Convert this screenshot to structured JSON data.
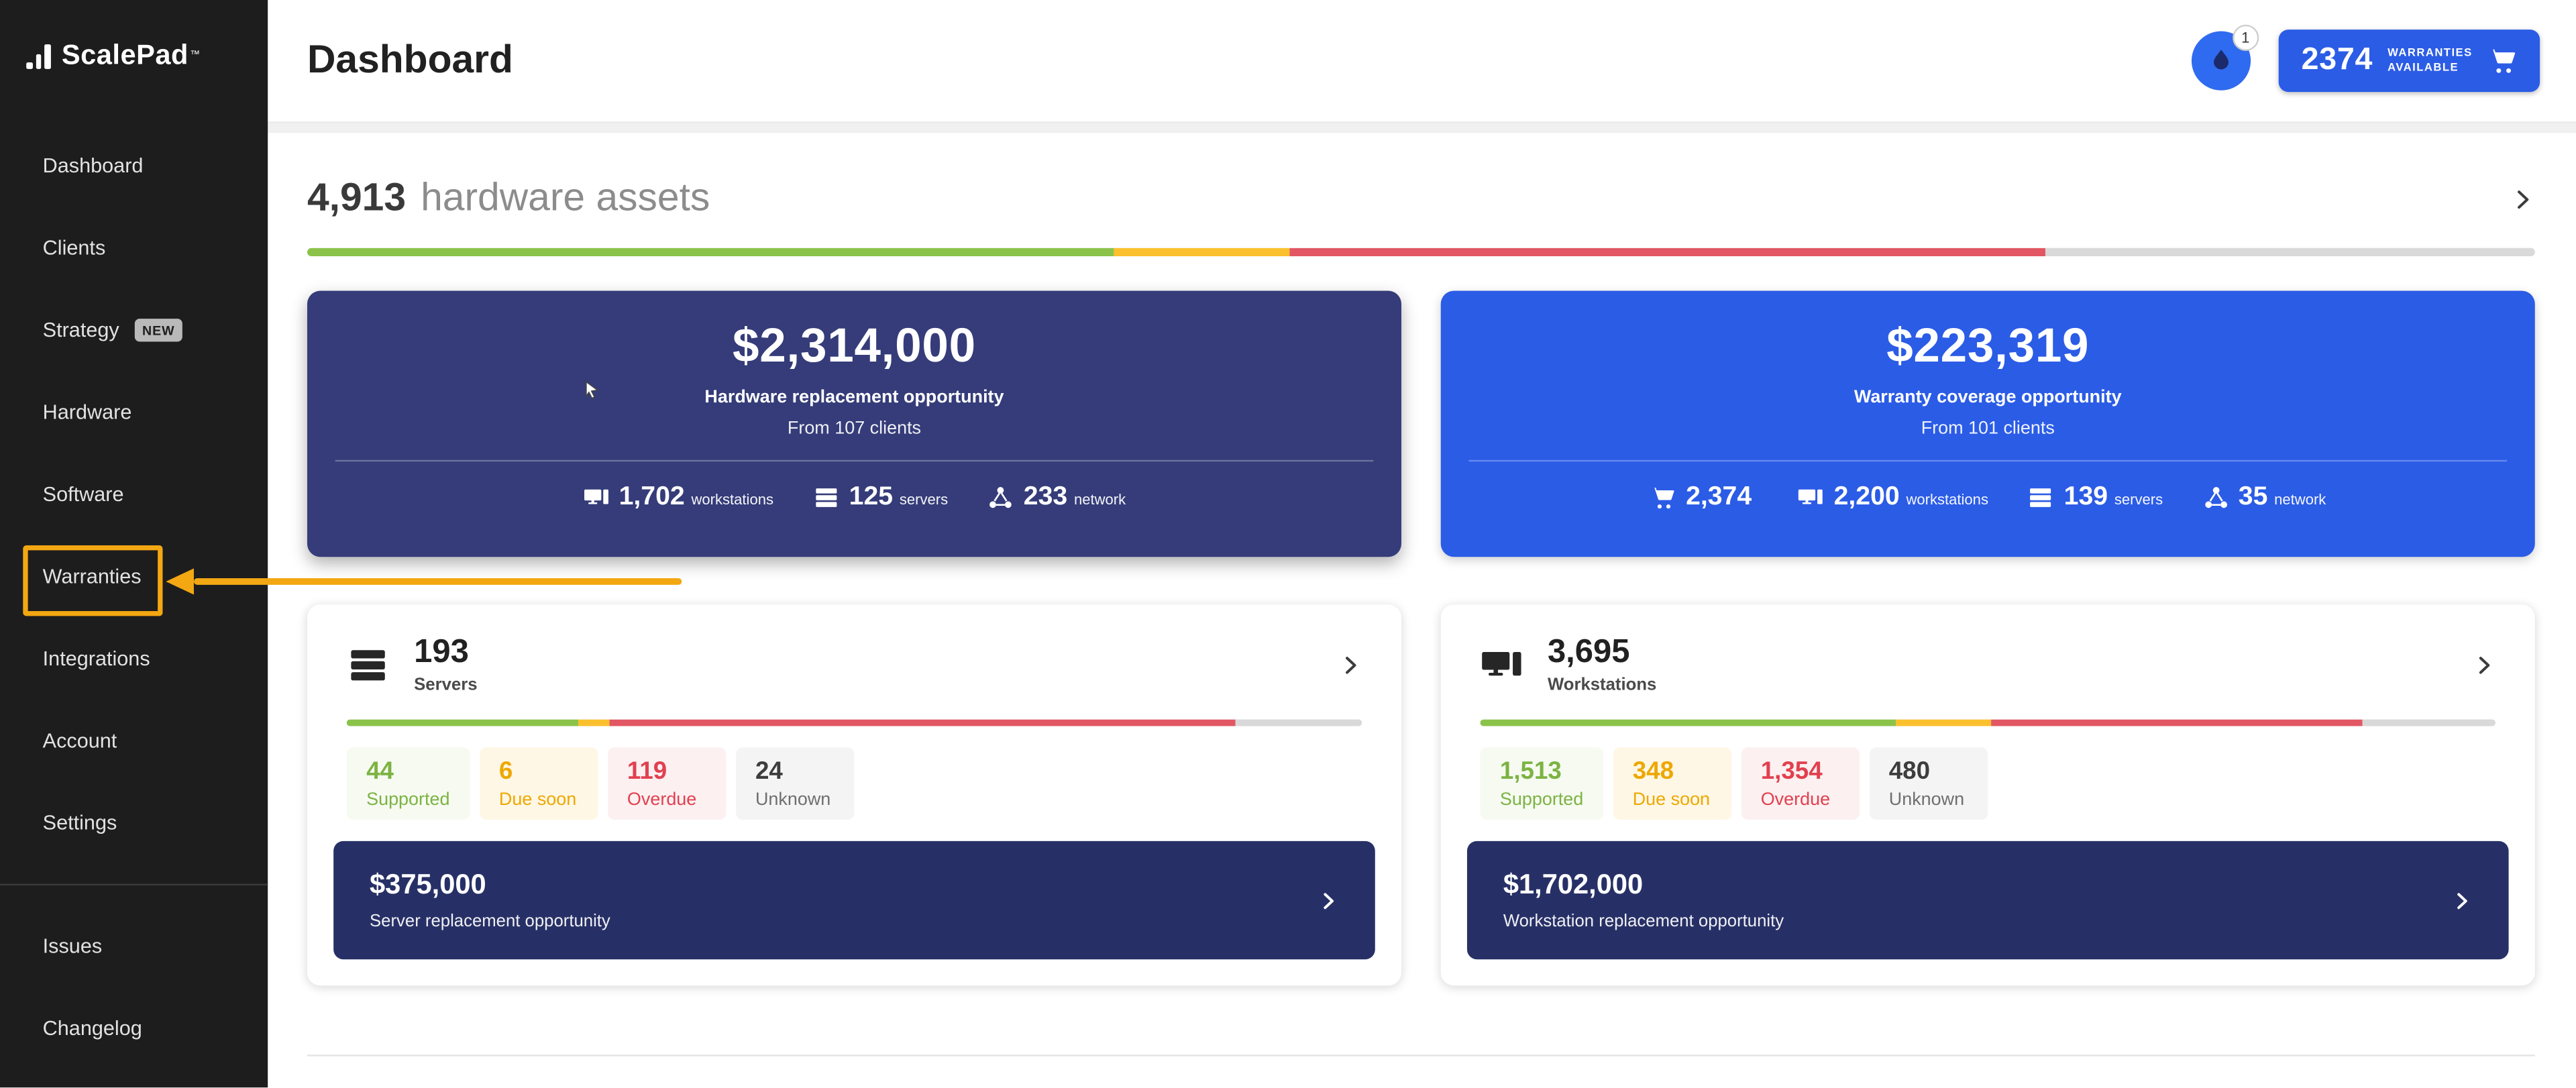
{
  "colors": {
    "accent_blue": "#2b5ce6",
    "navy_card": "#353c79",
    "navy_banner": "#273066",
    "status_green": "#8bc34a",
    "status_amber": "#fbc02d",
    "status_red": "#e25763",
    "track_gray": "#d9d9d9",
    "annotation_orange": "#f3a712"
  },
  "sidebar": {
    "logo": "ScalePad",
    "logo_tm": "™",
    "items": [
      {
        "label": "Dashboard"
      },
      {
        "label": "Clients"
      },
      {
        "label": "Strategy",
        "badge": "NEW"
      },
      {
        "label": "Hardware"
      },
      {
        "label": "Software"
      },
      {
        "label": "Warranties"
      },
      {
        "label": "Integrations"
      },
      {
        "label": "Account"
      },
      {
        "label": "Settings"
      },
      {
        "label": "Issues"
      },
      {
        "label": "Changelog"
      }
    ]
  },
  "topbar": {
    "title": "Dashboard",
    "notification_badge": "1",
    "warranties_button": {
      "count": "2374",
      "line1": "WARRANTIES",
      "line2": "AVAILABLE"
    }
  },
  "overview": {
    "count": "4,913",
    "label": "hardware assets",
    "progress": [
      {
        "color": "#8bc34a",
        "pct": 36.2
      },
      {
        "color": "#fbc02d",
        "pct": 7.9
      },
      {
        "color": "#e25763",
        "pct": 33.9
      },
      {
        "color": "#d9d9d9",
        "pct": 22.0
      }
    ]
  },
  "opportunities": {
    "hardware": {
      "amount": "$2,314,000",
      "title": "Hardware replacement opportunity",
      "subtitle": "From 107 clients",
      "stats": [
        {
          "icon": "workstation-icon",
          "value": "1,702",
          "unit": "workstations"
        },
        {
          "icon": "server-icon",
          "value": "125",
          "unit": "servers"
        },
        {
          "icon": "network-icon",
          "value": "233",
          "unit": "network"
        }
      ]
    },
    "warranty": {
      "amount": "$223,319",
      "title": "Warranty coverage opportunity",
      "subtitle": "From 101 clients",
      "stats": [
        {
          "icon": "cart-icon",
          "value": "2,374",
          "unit": ""
        },
        {
          "icon": "workstation-icon",
          "value": "2,200",
          "unit": "workstations"
        },
        {
          "icon": "server-icon",
          "value": "139",
          "unit": "servers"
        },
        {
          "icon": "network-icon",
          "value": "35",
          "unit": "network"
        }
      ]
    }
  },
  "servers_card": {
    "count": "193",
    "label": "Servers",
    "progress": [
      {
        "color": "#8bc34a",
        "pct": 22.8
      },
      {
        "color": "#fbc02d",
        "pct": 3.1
      },
      {
        "color": "#e25763",
        "pct": 61.7
      },
      {
        "color": "#d9d9d9",
        "pct": 12.4
      }
    ],
    "stats": [
      {
        "value": "44",
        "label": "Supported"
      },
      {
        "value": "6",
        "label": "Due soon"
      },
      {
        "value": "119",
        "label": "Overdue"
      },
      {
        "value": "24",
        "label": "Unknown"
      }
    ],
    "banner": {
      "amount": "$375,000",
      "label": "Server replacement opportunity"
    }
  },
  "workstations_card": {
    "count": "3,695",
    "label": "Workstations",
    "progress": [
      {
        "color": "#8bc34a",
        "pct": 40.9
      },
      {
        "color": "#fbc02d",
        "pct": 9.4
      },
      {
        "color": "#e25763",
        "pct": 36.6
      },
      {
        "color": "#d9d9d9",
        "pct": 13.0
      }
    ],
    "stats": [
      {
        "value": "1,513",
        "label": "Supported"
      },
      {
        "value": "348",
        "label": "Due soon"
      },
      {
        "value": "1,354",
        "label": "Overdue"
      },
      {
        "value": "480",
        "label": "Unknown"
      }
    ],
    "banner": {
      "amount": "$1,702,000",
      "label": "Workstation replacement opportunity"
    }
  }
}
